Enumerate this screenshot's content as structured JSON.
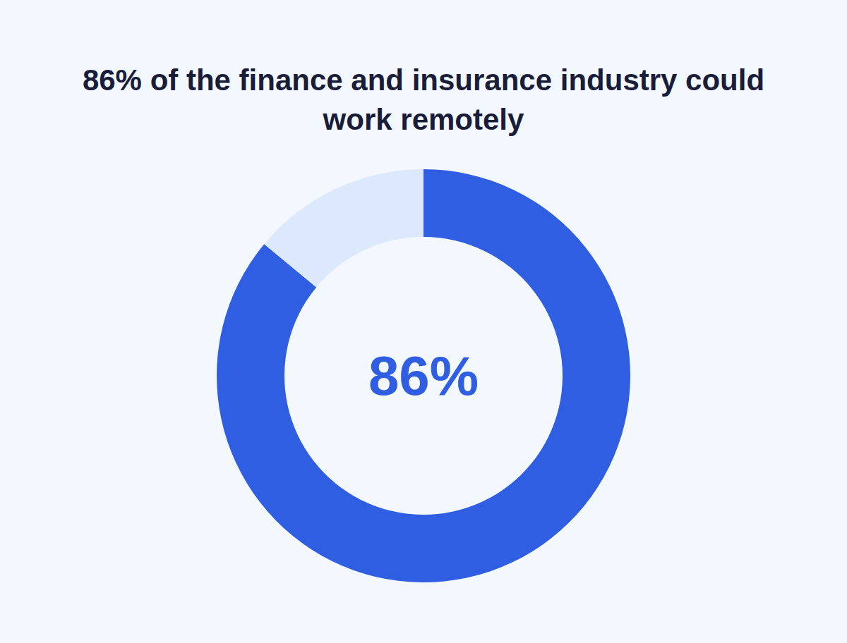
{
  "chart_data": {
    "type": "pie",
    "title": "86% of the finance and insurance industry could work remotely",
    "values": [
      86,
      14
    ],
    "colors": [
      "#2f5ee2",
      "#dce8fb"
    ],
    "annotation": "86%"
  }
}
